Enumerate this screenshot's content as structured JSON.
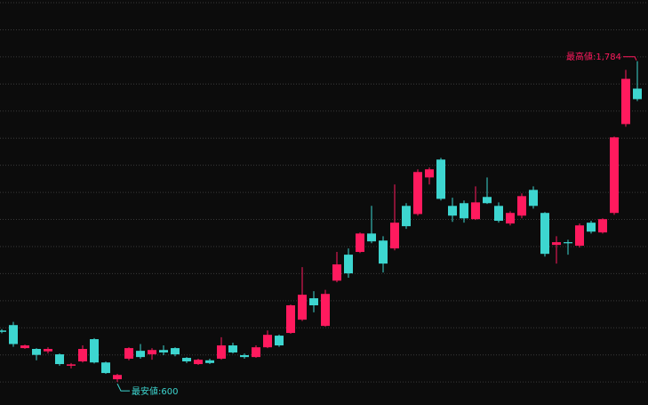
{
  "chart_data": {
    "type": "candlestick",
    "up_color": "#ff1a5e",
    "down_color": "#3dd6d0",
    "grid": true,
    "ylim": [
      515,
      2010
    ],
    "yticks": [
      600,
      700,
      800,
      900,
      1000,
      1100,
      1200,
      1300,
      1400,
      1500,
      1600,
      1700,
      1800,
      1900,
      2000
    ],
    "open": [
      790,
      810,
      725,
      722,
      713,
      702,
      660,
      676,
      758,
      672,
      610,
      686,
      715,
      702,
      718,
      725,
      689,
      666,
      680,
      686,
      735,
      699,
      692,
      728,
      771,
      781,
      830,
      909,
      807,
      974,
      1070,
      1080,
      1148,
      1122,
      1093,
      1250,
      1220,
      1355,
      1421,
      1250,
      1260,
      1201,
      1283,
      1250,
      1185,
      1214,
      1309,
      1224,
      1106,
      1116,
      1103,
      1188,
      1152,
      1224,
      1552,
      1683
    ],
    "high": [
      795,
      822,
      738,
      725,
      728,
      705,
      670,
      735,
      762,
      675,
      630,
      728,
      740,
      725,
      735,
      728,
      692,
      686,
      686,
      765,
      745,
      705,
      735,
      790,
      775,
      886,
      1024,
      935,
      940,
      1080,
      1093,
      1152,
      1250,
      1138,
      1329,
      1260,
      1385,
      1392,
      1427,
      1280,
      1270,
      1322,
      1355,
      1263,
      1230,
      1296,
      1322,
      1227,
      1138,
      1125,
      1185,
      1195,
      1204,
      1506,
      1752,
      1784
    ],
    "low": [
      780,
      730,
      722,
      680,
      705,
      660,
      650,
      672,
      668,
      630,
      600,
      680,
      686,
      682,
      699,
      695,
      670,
      663,
      666,
      682,
      705,
      686,
      689,
      725,
      730,
      778,
      825,
      857,
      804,
      968,
      985,
      1076,
      1112,
      1004,
      1086,
      1165,
      1214,
      1329,
      1270,
      1191,
      1188,
      1198,
      1257,
      1188,
      1178,
      1204,
      1240,
      1063,
      1037,
      1070,
      1096,
      1148,
      1148,
      1217,
      1542,
      1637
    ],
    "close": [
      785,
      740,
      735,
      700,
      722,
      666,
      665,
      722,
      672,
      633,
      626,
      725,
      692,
      718,
      709,
      702,
      676,
      682,
      670,
      735,
      709,
      692,
      728,
      774,
      735,
      883,
      922,
      883,
      925,
      1034,
      1001,
      1148,
      1119,
      1037,
      1188,
      1175,
      1375,
      1385,
      1276,
      1214,
      1204,
      1263,
      1260,
      1195,
      1224,
      1286,
      1250,
      1073,
      1116,
      1112,
      1178,
      1155,
      1201,
      1503,
      1719,
      1644
    ],
    "high_label": "最高値:1,784",
    "low_label": "最安値:600"
  }
}
